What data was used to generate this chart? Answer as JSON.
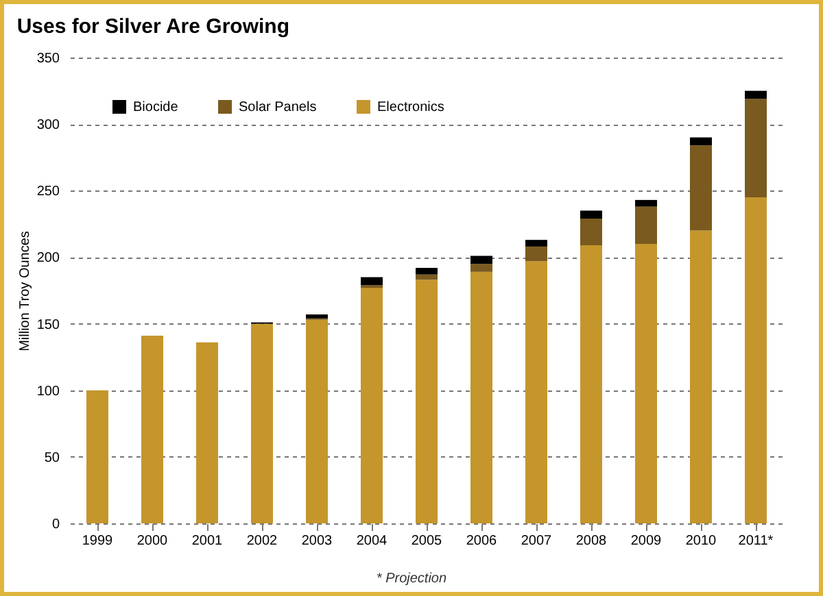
{
  "chart_data": {
    "type": "bar",
    "title": "Uses for Silver Are Growing",
    "ylabel": "Million Troy Ounces",
    "categories": [
      "1999",
      "2000",
      "2001",
      "2002",
      "2003",
      "2004",
      "2005",
      "2006",
      "2007",
      "2008",
      "2009",
      "2010",
      "2011*"
    ],
    "stacked": true,
    "series": [
      {
        "name": "Electronics",
        "color": "#c4962c",
        "values": [
          100,
          141,
          136,
          150,
          153,
          177,
          183,
          189,
          197,
          209,
          210,
          220,
          245
        ]
      },
      {
        "name": "Solar Panels",
        "color": "#7a5a1e",
        "values": [
          0,
          0,
          0,
          0,
          1,
          2,
          4,
          6,
          11,
          20,
          28,
          64,
          74
        ]
      },
      {
        "name": "Biocide",
        "color": "#000000",
        "values": [
          0,
          0,
          0,
          1,
          3,
          6,
          5,
          6,
          5,
          6,
          5,
          6,
          6
        ]
      }
    ],
    "ylim": [
      0,
      350
    ],
    "yticks": [
      0,
      50,
      100,
      150,
      200,
      250,
      300,
      350
    ],
    "grid": "y",
    "legend": "top left",
    "annotations": [
      "* Projection"
    ]
  }
}
